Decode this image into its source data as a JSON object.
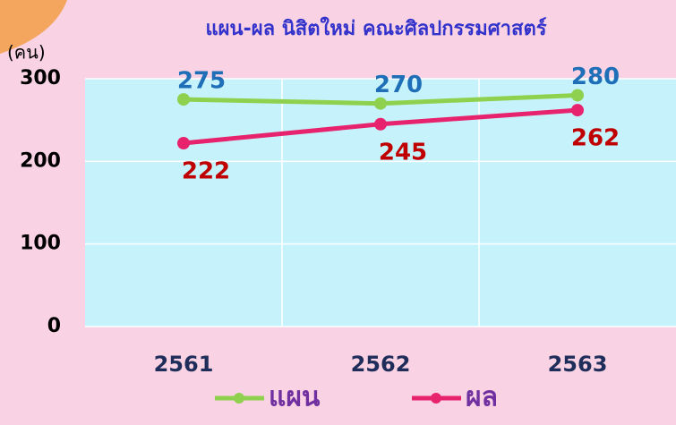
{
  "chart_data": {
    "type": "line",
    "title": "แผน-ผล นิสิตใหม่ คณะศิลปกรรมศาสตร์",
    "y_label": "(คน)",
    "categories": [
      "2561",
      "2562",
      "2563"
    ],
    "series": [
      {
        "name": "แผน",
        "color": "#8fd14f",
        "label_color": "#1f6fb8",
        "values": [
          275,
          270,
          280
        ]
      },
      {
        "name": "ผล",
        "color": "#e8236e",
        "label_color": "#c00000",
        "values": [
          222,
          245,
          262
        ]
      }
    ],
    "ylim": [
      0,
      300
    ],
    "yticks": [
      0,
      100,
      200,
      300
    ],
    "grid": true
  }
}
